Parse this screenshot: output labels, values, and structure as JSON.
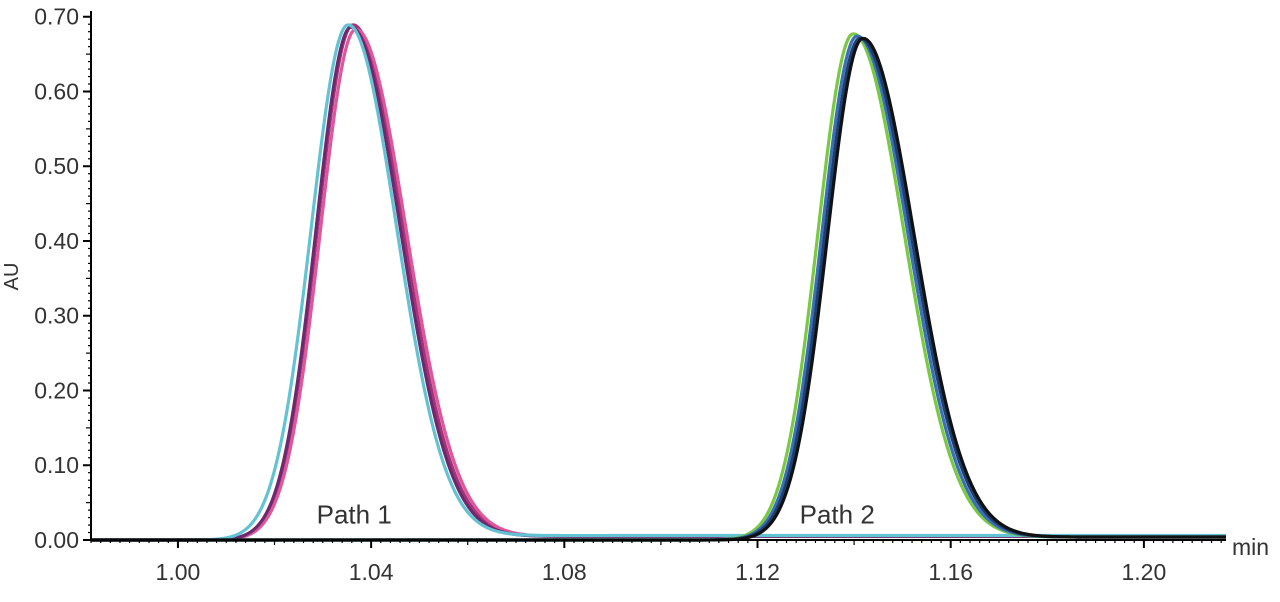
{
  "chart_data": {
    "type": "line",
    "title": "",
    "xlabel": "min",
    "ylabel": "AU",
    "xlim": [
      0.982,
      1.217
    ],
    "ylim": [
      0.0,
      0.705
    ],
    "x_ticks": [
      {
        "value": 1.0,
        "label": "1.00"
      },
      {
        "value": 1.04,
        "label": "1.04"
      },
      {
        "value": 1.08,
        "label": "1.08"
      },
      {
        "value": 1.12,
        "label": "1.12"
      },
      {
        "value": 1.16,
        "label": "1.16"
      },
      {
        "value": 1.2,
        "label": "1.20"
      }
    ],
    "y_ticks": [
      {
        "value": 0.0,
        "label": "0.00"
      },
      {
        "value": 0.1,
        "label": "0.10"
      },
      {
        "value": 0.2,
        "label": "0.20"
      },
      {
        "value": 0.3,
        "label": "0.30"
      },
      {
        "value": 0.4,
        "label": "0.40"
      },
      {
        "value": 0.5,
        "label": "0.50"
      },
      {
        "value": 0.6,
        "label": "0.60"
      },
      {
        "value": 0.7,
        "label": "0.70"
      }
    ],
    "grid": false,
    "annotations": [
      {
        "text": "Path 1",
        "x": 1.0365,
        "y": 0.025
      },
      {
        "text": "Path 2",
        "x": 1.1365,
        "y": 0.025
      }
    ],
    "series": [
      {
        "color": "#a8327a",
        "baseline": 0.0,
        "tail": 0.005,
        "peaks": [
          {
            "center": 1.0362,
            "height": 0.689,
            "sigma_left": 0.0073,
            "sigma_right": 0.0103
          }
        ]
      },
      {
        "color": "#e0569b",
        "baseline": 0.0,
        "tail": 0.005,
        "peaks": [
          {
            "center": 1.0368,
            "height": 0.683,
            "sigma_left": 0.0073,
            "sigma_right": 0.0104
          }
        ]
      },
      {
        "color": "#6c2a6e",
        "baseline": 0.0,
        "tail": 0.005,
        "peaks": [
          {
            "center": 1.0358,
            "height": 0.686,
            "sigma_left": 0.0072,
            "sigma_right": 0.0102
          }
        ]
      },
      {
        "color": "#64c3d3",
        "baseline": 0.0,
        "tail": 0.006,
        "peaks": [
          {
            "center": 1.0352,
            "height": 0.689,
            "sigma_left": 0.0076,
            "sigma_right": 0.01
          }
        ]
      },
      {
        "color": "#7ac943",
        "baseline": 0.0,
        "tail": 0.004,
        "peaks": [
          {
            "center": 1.1398,
            "height": 0.677,
            "sigma_left": 0.0073,
            "sigma_right": 0.0105
          }
        ]
      },
      {
        "color": "#3b6fb6",
        "baseline": 0.0,
        "tail": 0.004,
        "peaks": [
          {
            "center": 1.1406,
            "height": 0.674,
            "sigma_left": 0.0073,
            "sigma_right": 0.0105
          }
        ]
      },
      {
        "color": "#1f3f6e",
        "baseline": 0.0,
        "tail": 0.004,
        "peaks": [
          {
            "center": 1.1412,
            "height": 0.671,
            "sigma_left": 0.0073,
            "sigma_right": 0.0106
          }
        ]
      },
      {
        "color": "#111111",
        "baseline": 0.0,
        "tail": 0.004,
        "peaks": [
          {
            "center": 1.1418,
            "height": 0.671,
            "sigma_left": 0.0073,
            "sigma_right": 0.0106
          }
        ]
      }
    ]
  }
}
